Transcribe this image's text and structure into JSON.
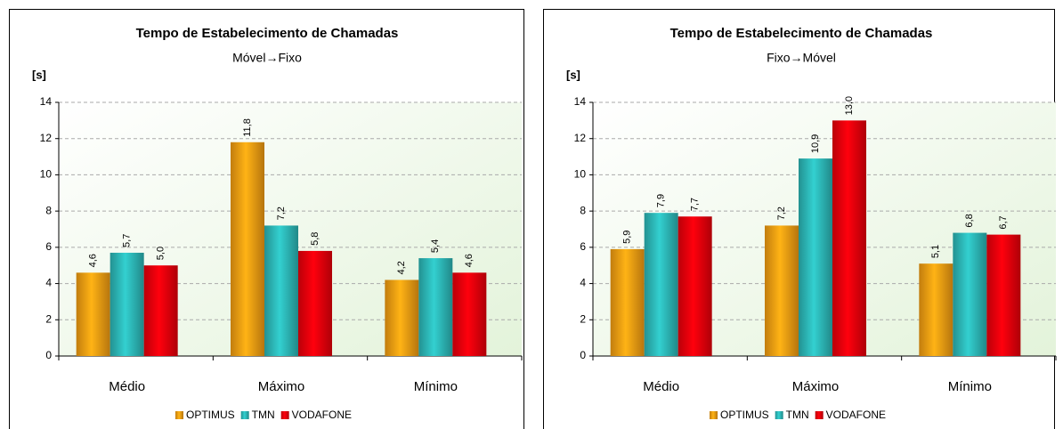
{
  "chart_data": [
    {
      "type": "bar",
      "title": "Tempo de Estabelecimento de Chamadas",
      "subtitle": "Móvel→Fixo",
      "y_label": "[s]",
      "categories": [
        "Médio",
        "Máximo",
        "Mínimo"
      ],
      "series": [
        {
          "name": "OPTIMUS",
          "color": "#f39c12",
          "values": [
            4.6,
            11.8,
            4.2
          ],
          "value_labels": [
            "4,6",
            "11,8",
            "4,2"
          ]
        },
        {
          "name": "TMN",
          "color": "#2cb5b5",
          "values": [
            5.7,
            7.2,
            5.4
          ],
          "value_labels": [
            "5,7",
            "7,2",
            "5,4"
          ]
        },
        {
          "name": "VODAFONE",
          "color": "#e8000b",
          "values": [
            5.0,
            5.8,
            4.6
          ],
          "value_labels": [
            "5,0",
            "5,8",
            "4,6"
          ]
        }
      ],
      "ylim": [
        0,
        14
      ],
      "yticks": [
        0,
        2,
        4,
        6,
        8,
        10,
        12,
        14
      ],
      "grid": true,
      "legend": "bottom"
    },
    {
      "type": "bar",
      "title": "Tempo de Estabelecimento de Chamadas",
      "subtitle": "Fixo→Móvel",
      "y_label": "[s]",
      "categories": [
        "Médio",
        "Máximo",
        "Mínimo"
      ],
      "series": [
        {
          "name": "OPTIMUS",
          "color": "#f39c12",
          "values": [
            5.9,
            7.2,
            5.1
          ],
          "value_labels": [
            "5,9",
            "7,2",
            "5,1"
          ]
        },
        {
          "name": "TMN",
          "color": "#2cb5b5",
          "values": [
            7.9,
            10.9,
            6.8
          ],
          "value_labels": [
            "7,9",
            "10,9",
            "6,8"
          ]
        },
        {
          "name": "VODAFONE",
          "color": "#e8000b",
          "values": [
            7.7,
            13.0,
            6.7
          ],
          "value_labels": [
            "7,7",
            "13,0",
            "6,7"
          ]
        }
      ],
      "ylim": [
        0,
        14
      ],
      "yticks": [
        0,
        2,
        4,
        6,
        8,
        10,
        12,
        14
      ],
      "grid": true,
      "legend": "bottom"
    }
  ]
}
